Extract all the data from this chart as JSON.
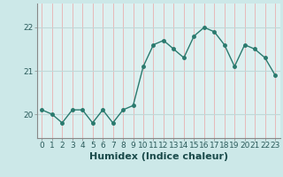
{
  "x": [
    0,
    1,
    2,
    3,
    4,
    5,
    6,
    7,
    8,
    9,
    10,
    11,
    12,
    13,
    14,
    15,
    16,
    17,
    18,
    19,
    20,
    21,
    22,
    23
  ],
  "y": [
    20.1,
    20.0,
    19.8,
    20.1,
    20.1,
    19.8,
    20.1,
    19.8,
    20.1,
    20.2,
    21.1,
    21.6,
    21.7,
    21.5,
    21.3,
    21.8,
    22.0,
    21.9,
    21.6,
    21.1,
    21.6,
    21.5,
    21.3,
    20.9
  ],
  "line_color": "#2a7a6e",
  "marker": "o",
  "marker_size": 2.5,
  "bg_color": "#cce8e8",
  "plot_bg_color": "#ddf0f0",
  "grid_color": "#c0d8d8",
  "vgrid_color": "#e8b0b0",
  "xlabel": "Humidex (Indice chaleur)",
  "xlabel_fontsize": 8,
  "yticks": [
    20,
    21,
    22
  ],
  "ylim": [
    19.45,
    22.55
  ],
  "xlim": [
    -0.5,
    23.5
  ],
  "xticks": [
    0,
    1,
    2,
    3,
    4,
    5,
    6,
    7,
    8,
    9,
    10,
    11,
    12,
    13,
    14,
    15,
    16,
    17,
    18,
    19,
    20,
    21,
    22,
    23
  ],
  "tick_fontsize": 6.5,
  "spine_color": "#888888",
  "tick_color": "#2a5a5a",
  "label_color": "#1a4a4a"
}
